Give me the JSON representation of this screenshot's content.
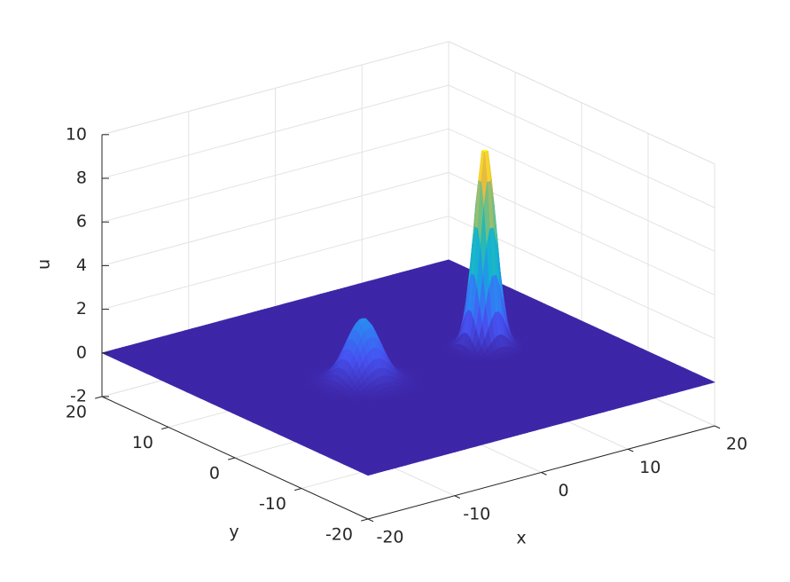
{
  "chart_data": {
    "type": "surface3d",
    "xlabel": "x",
    "ylabel": "y",
    "zlabel": "u",
    "xlim": [
      -20,
      20
    ],
    "xticks": [
      -20,
      -10,
      0,
      10,
      20
    ],
    "ylim": [
      -20,
      20
    ],
    "yticks": [
      -20,
      -10,
      0,
      10,
      20
    ],
    "zlim": [
      -2,
      10
    ],
    "zticks": [
      -2,
      0,
      2,
      4,
      6,
      8,
      10
    ],
    "grid": true,
    "colormap": "parula",
    "peaks": [
      {
        "x": 9,
        "y": 0.2,
        "height": 9.3,
        "sigma": 1.0
      },
      {
        "x": -5.5,
        "y": -0.4,
        "height": 2.9,
        "sigma": 1.6
      }
    ]
  }
}
